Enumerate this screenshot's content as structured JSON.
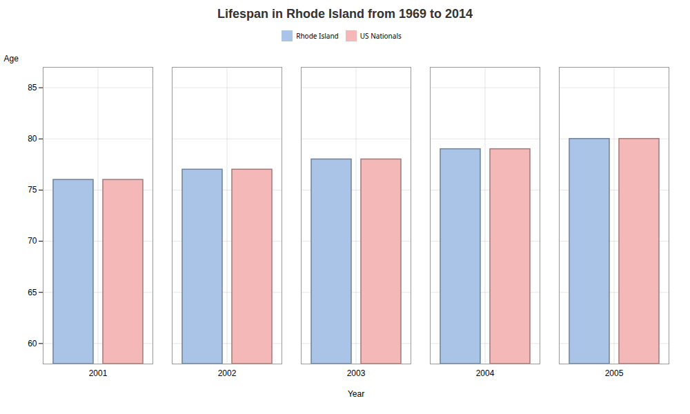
{
  "chart_data": {
    "type": "bar",
    "title": "Lifespan in Rhode Island from 1969 to 2014",
    "xlabel": "Year",
    "ylabel": "Age",
    "categories": [
      "2001",
      "2002",
      "2003",
      "2004",
      "2005"
    ],
    "series": [
      {
        "name": "Rhode Island",
        "color": "#aac4e8",
        "values": [
          76.0,
          77.0,
          78.0,
          79.0,
          80.0
        ]
      },
      {
        "name": "US Nationals",
        "color": "#f5b8b8",
        "values": [
          76.0,
          77.0,
          78.0,
          79.0,
          80.0
        ]
      }
    ],
    "ylim": [
      58,
      87
    ],
    "yticks": [
      60,
      65,
      70,
      75,
      80,
      85
    ],
    "grid": true,
    "legend": "top"
  }
}
